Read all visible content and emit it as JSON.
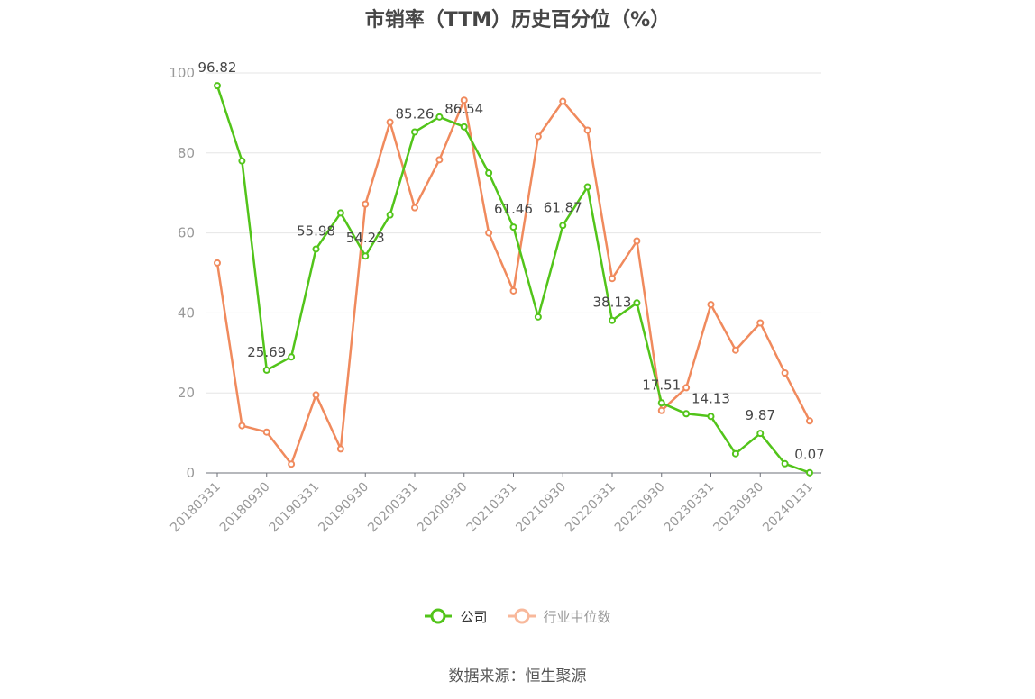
{
  "chart_data": {
    "type": "line",
    "title": "市销率（TTM）历史百分位（%）",
    "source": "数据来源：恒生聚源",
    "x": [
      "20180331",
      "20180630",
      "20180930",
      "20181231",
      "20190331",
      "20190630",
      "20190930",
      "20191231",
      "20200331",
      "20200630",
      "20200930",
      "20201231",
      "20210331",
      "20210630",
      "20210930",
      "20211231",
      "20220331",
      "20220630",
      "20220930",
      "20221231",
      "20230331",
      "20230630",
      "20230930",
      "20231231",
      "20240131"
    ],
    "x_tick_labels": [
      "20180331",
      "20180930",
      "20190331",
      "20190930",
      "20200331",
      "20200930",
      "20210331",
      "20210930",
      "20220331",
      "20220930",
      "20230331",
      "20230930",
      "20240131"
    ],
    "y_ticks": [
      0,
      20,
      40,
      60,
      80,
      100
    ],
    "ylim": [
      0,
      100
    ],
    "grid": true,
    "legend_position": "bottom",
    "series": [
      {
        "name": "公司",
        "color": "#52c41a",
        "values": [
          96.82,
          78.0,
          25.69,
          29.0,
          55.98,
          65.0,
          54.23,
          64.5,
          85.26,
          89.0,
          86.54,
          75.0,
          61.46,
          39.0,
          61.87,
          71.5,
          38.13,
          42.5,
          17.51,
          14.8,
          14.13,
          4.8,
          9.87,
          2.3,
          0.07
        ],
        "data_labels": [
          {
            "index": 0,
            "text": "96.82"
          },
          {
            "index": 2,
            "text": "25.69"
          },
          {
            "index": 4,
            "text": "55.98"
          },
          {
            "index": 6,
            "text": "54.23"
          },
          {
            "index": 8,
            "text": "85.26"
          },
          {
            "index": 10,
            "text": "86.54"
          },
          {
            "index": 12,
            "text": "61.46"
          },
          {
            "index": 14,
            "text": "61.87"
          },
          {
            "index": 16,
            "text": "38.13"
          },
          {
            "index": 18,
            "text": "17.51"
          },
          {
            "index": 20,
            "text": "14.13"
          },
          {
            "index": 22,
            "text": "9.87"
          },
          {
            "index": 24,
            "text": "0.07"
          }
        ]
      },
      {
        "name": "行业中位数",
        "color": "#f08a5d",
        "values": [
          52.5,
          11.8,
          10.2,
          2.2,
          19.5,
          6.0,
          67.2,
          87.7,
          66.3,
          78.3,
          93.2,
          60.0,
          45.5,
          84.1,
          92.9,
          85.7,
          48.6,
          58.0,
          15.6,
          21.3,
          42.1,
          30.7,
          37.5,
          25.0,
          13.0
        ]
      }
    ]
  }
}
